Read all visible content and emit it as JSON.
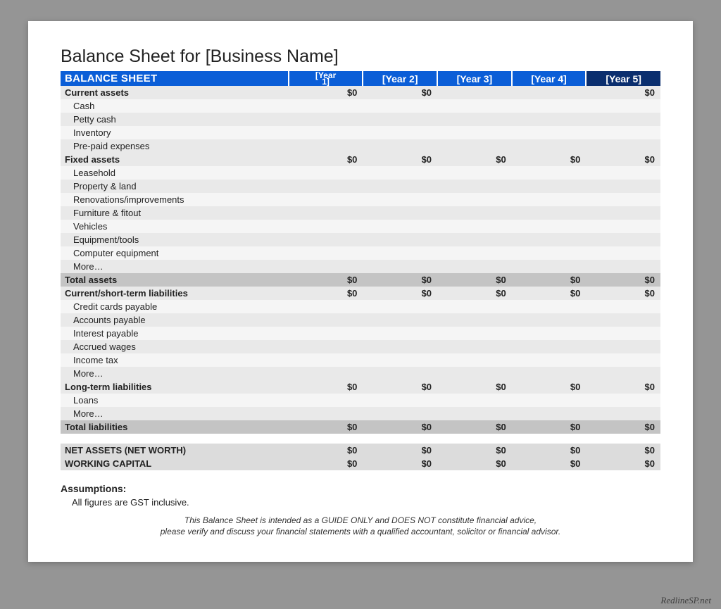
{
  "title": "Balance Sheet for [Business Name]",
  "header": {
    "main": "BALANCE SHEET",
    "year1_top": "[Year",
    "year1_bot": "1]",
    "years": [
      "[Year 2]",
      "[Year 3]",
      "[Year 4]",
      "[Year 5]"
    ]
  },
  "colors": {
    "header_bg": "#0b5ed7",
    "header_dark": "#0a2e6e",
    "section_bg": "#e9e9e9",
    "item_alt_bg": "#f5f5f5",
    "total_bg": "#c4c4c4",
    "final_bg": "#dcdcdc",
    "page_bg": "#ffffff",
    "body_bg": "#959595"
  },
  "sections": [
    {
      "label": "Current assets",
      "subtotal": [
        "$0",
        "$0",
        "",
        "",
        "$0"
      ],
      "items": [
        {
          "label": "Cash",
          "vals": [
            "",
            "",
            "",
            "",
            ""
          ]
        },
        {
          "label": "Petty cash",
          "vals": [
            "",
            "",
            "",
            "",
            ""
          ]
        },
        {
          "label": "Inventory",
          "vals": [
            "",
            "",
            "",
            "",
            ""
          ]
        },
        {
          "label": "Pre-paid expenses",
          "vals": [
            "",
            "",
            "",
            "",
            ""
          ]
        }
      ]
    },
    {
      "label": "Fixed assets",
      "subtotal": [
        "$0",
        "$0",
        "$0",
        "$0",
        "$0"
      ],
      "items": [
        {
          "label": "Leasehold",
          "vals": [
            "",
            "",
            "",
            "",
            ""
          ]
        },
        {
          "label": "Property & land",
          "vals": [
            "",
            "",
            "",
            "",
            ""
          ]
        },
        {
          "label": "Renovations/improvements",
          "vals": [
            "",
            "",
            "",
            "",
            ""
          ]
        },
        {
          "label": "Furniture & fitout",
          "vals": [
            "",
            "",
            "",
            "",
            ""
          ]
        },
        {
          "label": "Vehicles",
          "vals": [
            "",
            "",
            "",
            "",
            ""
          ]
        },
        {
          "label": "Equipment/tools",
          "vals": [
            "",
            "",
            "",
            "",
            ""
          ]
        },
        {
          "label": "Computer equipment",
          "vals": [
            "",
            "",
            "",
            "",
            ""
          ]
        },
        {
          "label": "More…",
          "vals": [
            "",
            "",
            "",
            "",
            ""
          ]
        }
      ]
    }
  ],
  "total_assets": {
    "label": "Total assets",
    "vals": [
      "$0",
      "$0",
      "$0",
      "$0",
      "$0"
    ]
  },
  "liab_sections": [
    {
      "label": "Current/short-term liabilities",
      "subtotal": [
        "$0",
        "$0",
        "$0",
        "$0",
        "$0"
      ],
      "items": [
        {
          "label": "Credit cards payable",
          "vals": [
            "",
            "",
            "",
            "",
            ""
          ]
        },
        {
          "label": "Accounts payable",
          "vals": [
            "",
            "",
            "",
            "",
            ""
          ]
        },
        {
          "label": "Interest payable",
          "vals": [
            "",
            "",
            "",
            "",
            ""
          ]
        },
        {
          "label": "Accrued wages",
          "vals": [
            "",
            "",
            "",
            "",
            ""
          ]
        },
        {
          "label": "Income tax",
          "vals": [
            "",
            "",
            "",
            "",
            ""
          ]
        },
        {
          "label": "More…",
          "vals": [
            "",
            "",
            "",
            "",
            ""
          ]
        }
      ]
    },
    {
      "label": "Long-term liabilities",
      "subtotal": [
        "$0",
        "$0",
        "$0",
        "$0",
        "$0"
      ],
      "items": [
        {
          "label": "Loans",
          "vals": [
            "",
            "",
            "",
            "",
            ""
          ]
        },
        {
          "label": "More…",
          "vals": [
            "",
            "",
            "",
            "",
            ""
          ]
        }
      ]
    }
  ],
  "total_liab": {
    "label": "Total liabilities",
    "vals": [
      "$0",
      "$0",
      "$0",
      "$0",
      "$0"
    ]
  },
  "net_assets": {
    "label": "NET ASSETS (NET WORTH)",
    "vals": [
      "$0",
      "$0",
      "$0",
      "$0",
      "$0"
    ]
  },
  "working_capital": {
    "label": "WORKING CAPITAL",
    "vals": [
      "$0",
      "$0",
      "$0",
      "$0",
      "$0"
    ]
  },
  "assumptions": {
    "heading": "Assumptions:",
    "text": "All figures are GST inclusive."
  },
  "disclaimer": {
    "line1": "This Balance Sheet is intended as a GUIDE ONLY and DOES NOT constitute financial advice,",
    "line2": "please verify and discuss your financial statements with a qualified accountant, solicitor or financial advisor."
  },
  "watermark": "RedlineSP.net"
}
